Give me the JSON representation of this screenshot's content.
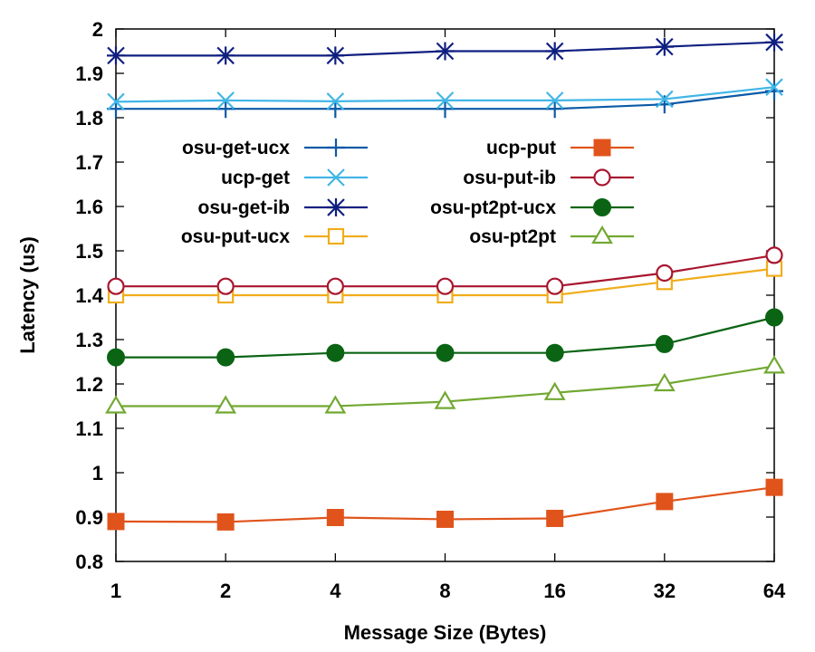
{
  "chart_data": {
    "type": "line",
    "xlabel": "Message Size (Bytes)",
    "ylabel": "Latency (us)",
    "categories": [
      "1",
      "2",
      "4",
      "8",
      "16",
      "32",
      "64"
    ],
    "ylim": [
      0.8,
      2.0
    ],
    "yticks": [
      "0.8",
      "0.9",
      "1",
      "1.1",
      "1.2",
      "1.3",
      "1.4",
      "1.5",
      "1.6",
      "1.7",
      "1.8",
      "1.9",
      "2"
    ],
    "grid": false,
    "legend_position": "upper-left, two columns",
    "series": [
      {
        "name": "osu-get-ucx",
        "color": "#0b5aa6",
        "marker": "plus",
        "values": [
          1.82,
          1.82,
          1.82,
          1.82,
          1.82,
          1.83,
          1.86
        ]
      },
      {
        "name": "ucp-get",
        "color": "#41b6e6",
        "marker": "x",
        "values": [
          1.836,
          1.839,
          1.837,
          1.839,
          1.839,
          1.842,
          1.869
        ]
      },
      {
        "name": "osu-get-ib",
        "color": "#0f1f80",
        "marker": "star",
        "values": [
          1.94,
          1.94,
          1.94,
          1.95,
          1.95,
          1.96,
          1.97
        ]
      },
      {
        "name": "osu-put-ucx",
        "color": "#f0ad1c",
        "marker": "square-open",
        "values": [
          1.4,
          1.4,
          1.4,
          1.4,
          1.4,
          1.43,
          1.46
        ]
      },
      {
        "name": "ucp-put",
        "color": "#e0541c",
        "marker": "square-filled",
        "values": [
          0.89,
          0.889,
          0.899,
          0.895,
          0.897,
          0.935,
          0.967
        ]
      },
      {
        "name": "osu-put-ib",
        "color": "#a8162f",
        "marker": "circle-open",
        "values": [
          1.42,
          1.42,
          1.42,
          1.42,
          1.42,
          1.45,
          1.49
        ]
      },
      {
        "name": "osu-pt2pt-ucx",
        "color": "#0a6414",
        "marker": "circle-filled",
        "values": [
          1.26,
          1.26,
          1.27,
          1.27,
          1.27,
          1.29,
          1.35
        ]
      },
      {
        "name": "osu-pt2pt",
        "color": "#72a832",
        "marker": "triangle-open",
        "values": [
          1.15,
          1.15,
          1.15,
          1.16,
          1.18,
          1.2,
          1.24
        ]
      }
    ]
  }
}
